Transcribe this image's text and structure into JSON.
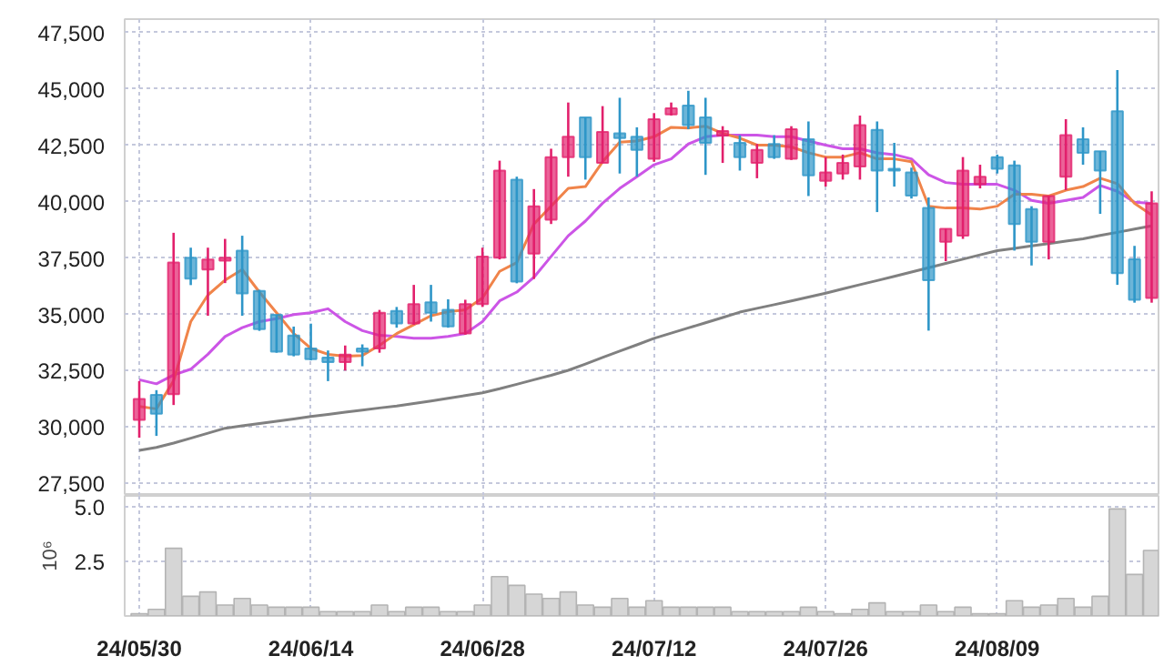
{
  "chart_data": [
    {
      "type": "candlestick",
      "tick_labels": "y",
      "grid": true,
      "categories": [
        null,
        null,
        null,
        null,
        null,
        null,
        null,
        null,
        null,
        null,
        null,
        null,
        null,
        null,
        null,
        null,
        null,
        null,
        null,
        null,
        null,
        null,
        null,
        null,
        null,
        null,
        null,
        null,
        null,
        null,
        null,
        null,
        null,
        null,
        null,
        null,
        null,
        null,
        null,
        null,
        null,
        null,
        null,
        null,
        null,
        null,
        null,
        null,
        null,
        null,
        null,
        null,
        null,
        null,
        null,
        null,
        null,
        null,
        null,
        null
      ],
      "ylim": [
        26950,
        48100
      ],
      "yticks": [
        {
          "value": 27500,
          "label": "27,500"
        },
        {
          "value": 30000,
          "label": "30,000"
        },
        {
          "value": 32500,
          "label": "32,500"
        },
        {
          "value": 35000,
          "label": "35,000"
        },
        {
          "value": 37500,
          "label": "37,500"
        },
        {
          "value": 40000,
          "label": "40,000"
        },
        {
          "value": 42500,
          "label": "42,500"
        },
        {
          "value": 45000,
          "label": "45,000"
        },
        {
          "value": 47500,
          "label": "47,500"
        }
      ],
      "ohlc": [
        [
          30320,
          32040,
          29530,
          31250
        ],
        [
          31430,
          31640,
          29610,
          30590
        ],
        [
          31460,
          38620,
          30980,
          37300
        ],
        [
          37510,
          37960,
          36300,
          36590
        ],
        [
          36990,
          37960,
          34940,
          37430
        ],
        [
          37380,
          38350,
          36390,
          37510
        ],
        [
          37830,
          38490,
          34940,
          35930
        ],
        [
          36040,
          36090,
          34270,
          34350
        ],
        [
          34980,
          34980,
          33300,
          33350
        ],
        [
          34060,
          34460,
          33140,
          33220
        ],
        [
          33490,
          34590,
          32960,
          33010
        ],
        [
          33090,
          33400,
          32040,
          32880
        ],
        [
          32880,
          33620,
          32510,
          33220
        ],
        [
          33490,
          33670,
          32700,
          33350
        ],
        [
          33490,
          35200,
          33300,
          35070
        ],
        [
          35150,
          35330,
          34410,
          34600
        ],
        [
          34600,
          36310,
          34540,
          35460
        ],
        [
          35540,
          36310,
          34680,
          35070
        ],
        [
          35200,
          35670,
          34410,
          34470
        ],
        [
          34150,
          35650,
          34100,
          35460
        ],
        [
          35460,
          37960,
          35330,
          37570
        ],
        [
          37510,
          41820,
          37440,
          41380
        ],
        [
          40980,
          41110,
          36380,
          36460
        ],
        [
          37700,
          40560,
          36570,
          39800
        ],
        [
          39200,
          42350,
          39010,
          41980
        ],
        [
          41980,
          44400,
          41110,
          42880
        ],
        [
          43740,
          43740,
          40980,
          41980
        ],
        [
          41720,
          44240,
          41720,
          43090
        ],
        [
          43030,
          44610,
          41250,
          42820
        ],
        [
          42880,
          43300,
          41110,
          42300
        ],
        [
          41900,
          43930,
          41770,
          43660
        ],
        [
          43870,
          44400,
          43820,
          44140
        ],
        [
          44270,
          44920,
          43220,
          43400
        ],
        [
          43740,
          44610,
          41190,
          42610
        ],
        [
          42930,
          43350,
          41720,
          43140
        ],
        [
          42610,
          42950,
          41380,
          41980
        ],
        [
          41720,
          42560,
          41040,
          42300
        ],
        [
          42560,
          42950,
          41900,
          41980
        ],
        [
          41900,
          43350,
          41850,
          43220
        ],
        [
          42770,
          43560,
          40250,
          41170
        ],
        [
          40930,
          41980,
          40670,
          41300
        ],
        [
          41250,
          42090,
          40980,
          41720
        ],
        [
          41560,
          43820,
          40980,
          43400
        ],
        [
          43190,
          43560,
          39540,
          41380
        ],
        [
          41460,
          42610,
          40670,
          41380
        ],
        [
          41300,
          41510,
          40140,
          40270
        ],
        [
          39720,
          40190,
          34280,
          36520
        ],
        [
          38220,
          38800,
          37360,
          38800
        ],
        [
          38490,
          41980,
          38350,
          41380
        ],
        [
          40770,
          41640,
          40590,
          41110
        ],
        [
          41980,
          42090,
          41250,
          41460
        ],
        [
          41610,
          41820,
          37830,
          39010
        ],
        [
          39670,
          39800,
          37170,
          38220
        ],
        [
          38220,
          40250,
          37440,
          40250
        ],
        [
          41110,
          43660,
          40510,
          42950
        ],
        [
          42770,
          43300,
          41640,
          42170
        ],
        [
          42240,
          42240,
          39460,
          41380
        ],
        [
          44010,
          45840,
          36310,
          36830
        ],
        [
          37440,
          38040,
          35520,
          35650
        ],
        [
          35730,
          40460,
          35520,
          39930
        ]
      ],
      "colors": [
        "#e2206c",
        "#2e96c8",
        "#e2206c",
        "#2e96c8",
        "#e2206c",
        "#e2206c",
        "#2e96c8",
        "#2e96c8",
        "#2e96c8",
        "#2e96c8",
        "#2e96c8",
        "#2e96c8",
        "#e2206c",
        "#2e96c8",
        "#e2206c",
        "#2e96c8",
        "#e2206c",
        "#2e96c8",
        "#2e96c8",
        "#e2206c",
        "#e2206c",
        "#e2206c",
        "#2e96c8",
        "#e2206c",
        "#e2206c",
        "#e2206c",
        "#2e96c8",
        "#e2206c",
        "#2e96c8",
        "#2e96c8",
        "#e2206c",
        "#e2206c",
        "#2e96c8",
        "#2e96c8",
        "#e2206c",
        "#2e96c8",
        "#e2206c",
        "#2e96c8",
        "#e2206c",
        "#2e96c8",
        "#e2206c",
        "#e2206c",
        "#e2206c",
        "#2e96c8",
        "#2e96c8",
        "#2e96c8",
        "#2e96c8",
        "#e2206c",
        "#e2206c",
        "#e2206c",
        "#2e96c8",
        "#2e96c8",
        "#2e96c8",
        "#e2206c",
        "#e2206c",
        "#2e96c8",
        "#2e96c8",
        "#2e96c8",
        "#2e96c8",
        "#e2206c"
      ],
      "series": [
        {
          "type": "line",
          "color": "#808080",
          "values": [
            28970,
            29100,
            29290,
            29510,
            29730,
            29950,
            30060,
            30160,
            30260,
            30360,
            30470,
            30560,
            30660,
            30750,
            30850,
            30940,
            31050,
            31160,
            31280,
            31400,
            31520,
            31700,
            31900,
            32100,
            32300,
            32520,
            32800,
            33090,
            33370,
            33650,
            33940,
            34170,
            34400,
            34630,
            34860,
            35100,
            35270,
            35430,
            35600,
            35770,
            35940,
            36130,
            36320,
            36500,
            36690,
            36880,
            37070,
            37260,
            37450,
            37640,
            37830,
            37930,
            38040,
            38140,
            38250,
            38350,
            38500,
            38640,
            38790,
            38930
          ]
        },
        {
          "type": "line",
          "color": "#cc55e6",
          "values": [
            32100,
            31920,
            32310,
            32570,
            33230,
            34020,
            34410,
            34680,
            34810,
            34990,
            35070,
            35250,
            34680,
            34280,
            34070,
            34020,
            33940,
            33940,
            34020,
            34150,
            34680,
            35600,
            35990,
            36650,
            37570,
            38490,
            39140,
            39930,
            40590,
            41110,
            41640,
            41900,
            42560,
            42880,
            42950,
            42950,
            42950,
            42880,
            42880,
            42690,
            42510,
            42350,
            42350,
            42170,
            42090,
            41900,
            41190,
            40850,
            40770,
            40770,
            40770,
            40510,
            40060,
            39930,
            40060,
            40190,
            40720,
            40460,
            39980,
            39930
          ]
        },
        {
          "type": "line",
          "color": "#f0844a",
          "values": [
            30920,
            30810,
            32050,
            34680,
            35860,
            36520,
            36990,
            35990,
            35070,
            34150,
            33490,
            33230,
            33150,
            33180,
            33630,
            34150,
            34540,
            34940,
            35120,
            35200,
            35730,
            36910,
            37300,
            39010,
            39800,
            40590,
            40670,
            41770,
            42640,
            42690,
            42880,
            43300,
            43270,
            43350,
            43030,
            42820,
            42510,
            42510,
            42430,
            42170,
            41980,
            41980,
            42170,
            41900,
            41900,
            41770,
            39800,
            39720,
            39720,
            39670,
            39800,
            40330,
            40330,
            40250,
            40510,
            40670,
            41040,
            40800,
            39930,
            39410
          ]
        }
      ]
    },
    {
      "type": "bar",
      "grid": true,
      "ylabel": "10⁶",
      "color": "#d6d6d6",
      "categories": [
        "24/05/30",
        null,
        null,
        null,
        null,
        null,
        null,
        null,
        null,
        null,
        "24/06/14",
        null,
        null,
        null,
        null,
        null,
        null,
        null,
        null,
        null,
        "24/06/28",
        null,
        null,
        null,
        null,
        null,
        null,
        null,
        null,
        null,
        "24/07/12",
        null,
        null,
        null,
        null,
        null,
        null,
        null,
        null,
        null,
        "24/07/26",
        null,
        null,
        null,
        null,
        null,
        null,
        null,
        null,
        null,
        "24/08/09",
        null,
        null,
        null,
        null,
        null,
        null,
        null,
        null,
        null
      ],
      "ylim": [
        0,
        5.5
      ],
      "yticks": [
        2.5,
        {
          "value": 5,
          "label": "5.0"
        }
      ],
      "values": [
        0.1,
        0.3,
        3.1,
        0.9,
        1.1,
        0.5,
        0.8,
        0.5,
        0.4,
        0.4,
        0.4,
        0.2,
        0.2,
        0.2,
        0.5,
        0.2,
        0.4,
        0.4,
        0.2,
        0.2,
        0.5,
        1.8,
        1.4,
        1.0,
        0.8,
        1.1,
        0.5,
        0.4,
        0.8,
        0.4,
        0.7,
        0.4,
        0.4,
        0.4,
        0.4,
        0.2,
        0.2,
        0.2,
        0.2,
        0.4,
        0.2,
        0.1,
        0.3,
        0.6,
        0.2,
        0.2,
        0.5,
        0.2,
        0.4,
        0.1,
        0.1,
        0.7,
        0.4,
        0.5,
        0.8,
        0.4,
        0.9,
        4.9,
        1.9,
        3.0
      ]
    }
  ]
}
